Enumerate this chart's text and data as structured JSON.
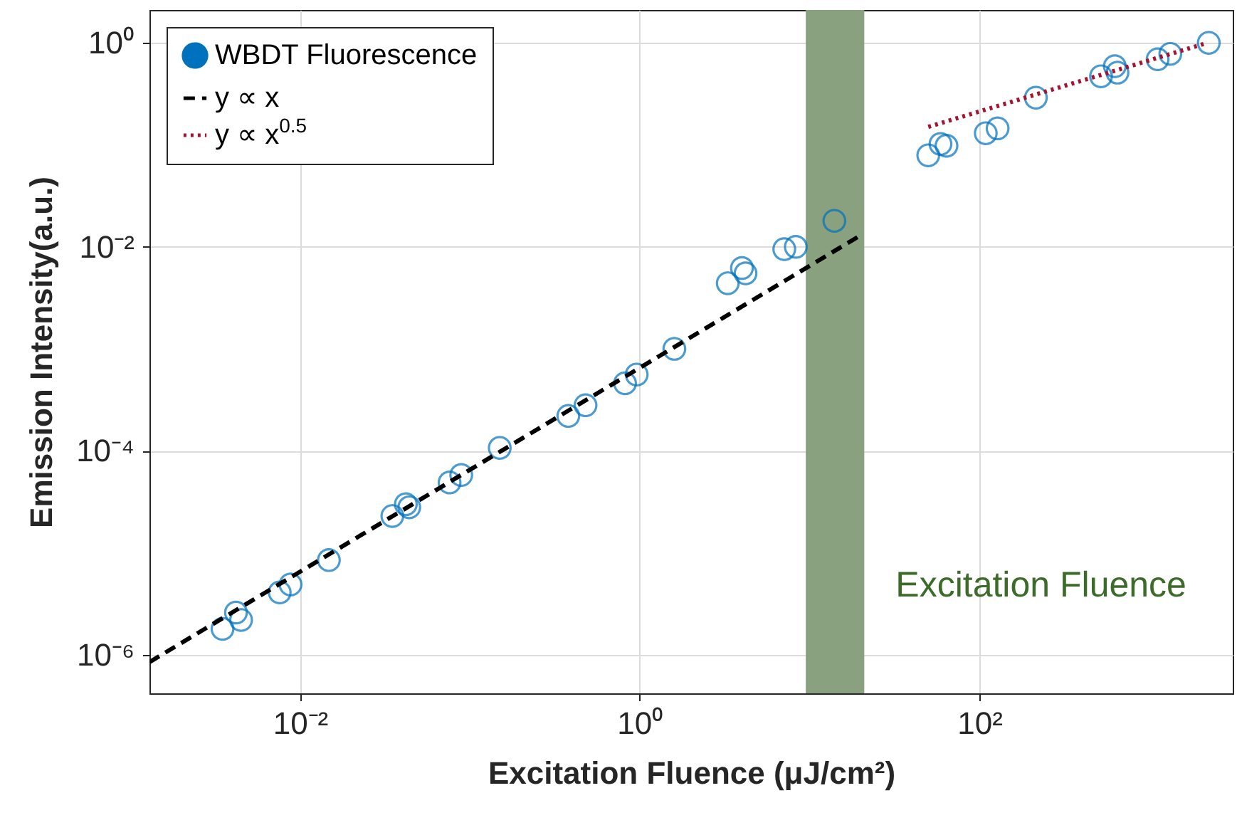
{
  "chart_data": {
    "type": "scatter",
    "xlabel": "Excitation Fluence (μJ/cm²)",
    "ylabel": "Emission Intensity(a.u.)",
    "log": "xy",
    "grid": true,
    "legend": "top left",
    "xlim": [
      0.0013,
      3100
    ],
    "ylim": [
      4.2e-07,
      2.1
    ],
    "xticks": [
      {
        "value": 0.01,
        "label": "10⁻²"
      },
      {
        "value": 1,
        "label": "10⁰"
      },
      {
        "value": 100,
        "label": "10²"
      }
    ],
    "yticks": [
      {
        "value": 1,
        "label": "10⁰"
      },
      {
        "value": 0.01,
        "label": "10⁻²"
      },
      {
        "value": 0.0001,
        "label": "10⁻⁴"
      },
      {
        "value": 1e-06,
        "label": "10⁻⁶"
      }
    ],
    "bands": [
      {
        "axis": "x",
        "from": 9.5,
        "to": 21,
        "label": "Excitation Fluence",
        "color": "#8aa180"
      }
    ],
    "series": [
      {
        "name": "WBDT Fluorescence",
        "marker": "circle",
        "color": "#0072bd",
        "x": [
          0.0035,
          0.0042,
          0.0045,
          0.0076,
          0.0088,
          0.0148,
          0.035,
          0.042,
          0.044,
          0.076,
          0.089,
          0.15,
          0.38,
          0.48,
          0.82,
          0.96,
          1.6,
          3.3,
          4.0,
          4.2,
          7.1,
          8.3,
          14,
          50,
          59,
          64,
          109,
          128,
          215,
          520,
          627,
          650,
          1120,
          1330,
          2240
        ],
        "values": [
          1.8e-06,
          2.6e-06,
          2.2e-06,
          4.1e-06,
          4.9e-06,
          8.5e-06,
          2.3e-05,
          3e-05,
          2.8e-05,
          4.9e-05,
          5.8e-05,
          0.000107,
          0.00022,
          0.00028,
          0.00046,
          0.00056,
          0.001,
          0.0044,
          0.0062,
          0.0055,
          0.0095,
          0.01,
          0.018,
          0.079,
          0.102,
          0.098,
          0.13,
          0.145,
          0.29,
          0.47,
          0.59,
          0.51,
          0.69,
          0.78,
          1.0
        ]
      },
      {
        "name": "y ∝ x",
        "type": "line",
        "line_style": "dashed",
        "color": "#000000",
        "x": [
          0.0013,
          20
        ],
        "values": [
          8.5e-07,
          0.013
        ]
      },
      {
        "name": "y ∝ x$^{0.5}$",
        "type": "line",
        "line_style": "dotted",
        "color": "#a2142f",
        "x": [
          50,
          2200
        ],
        "values": [
          0.15,
          1.0
        ]
      }
    ]
  }
}
